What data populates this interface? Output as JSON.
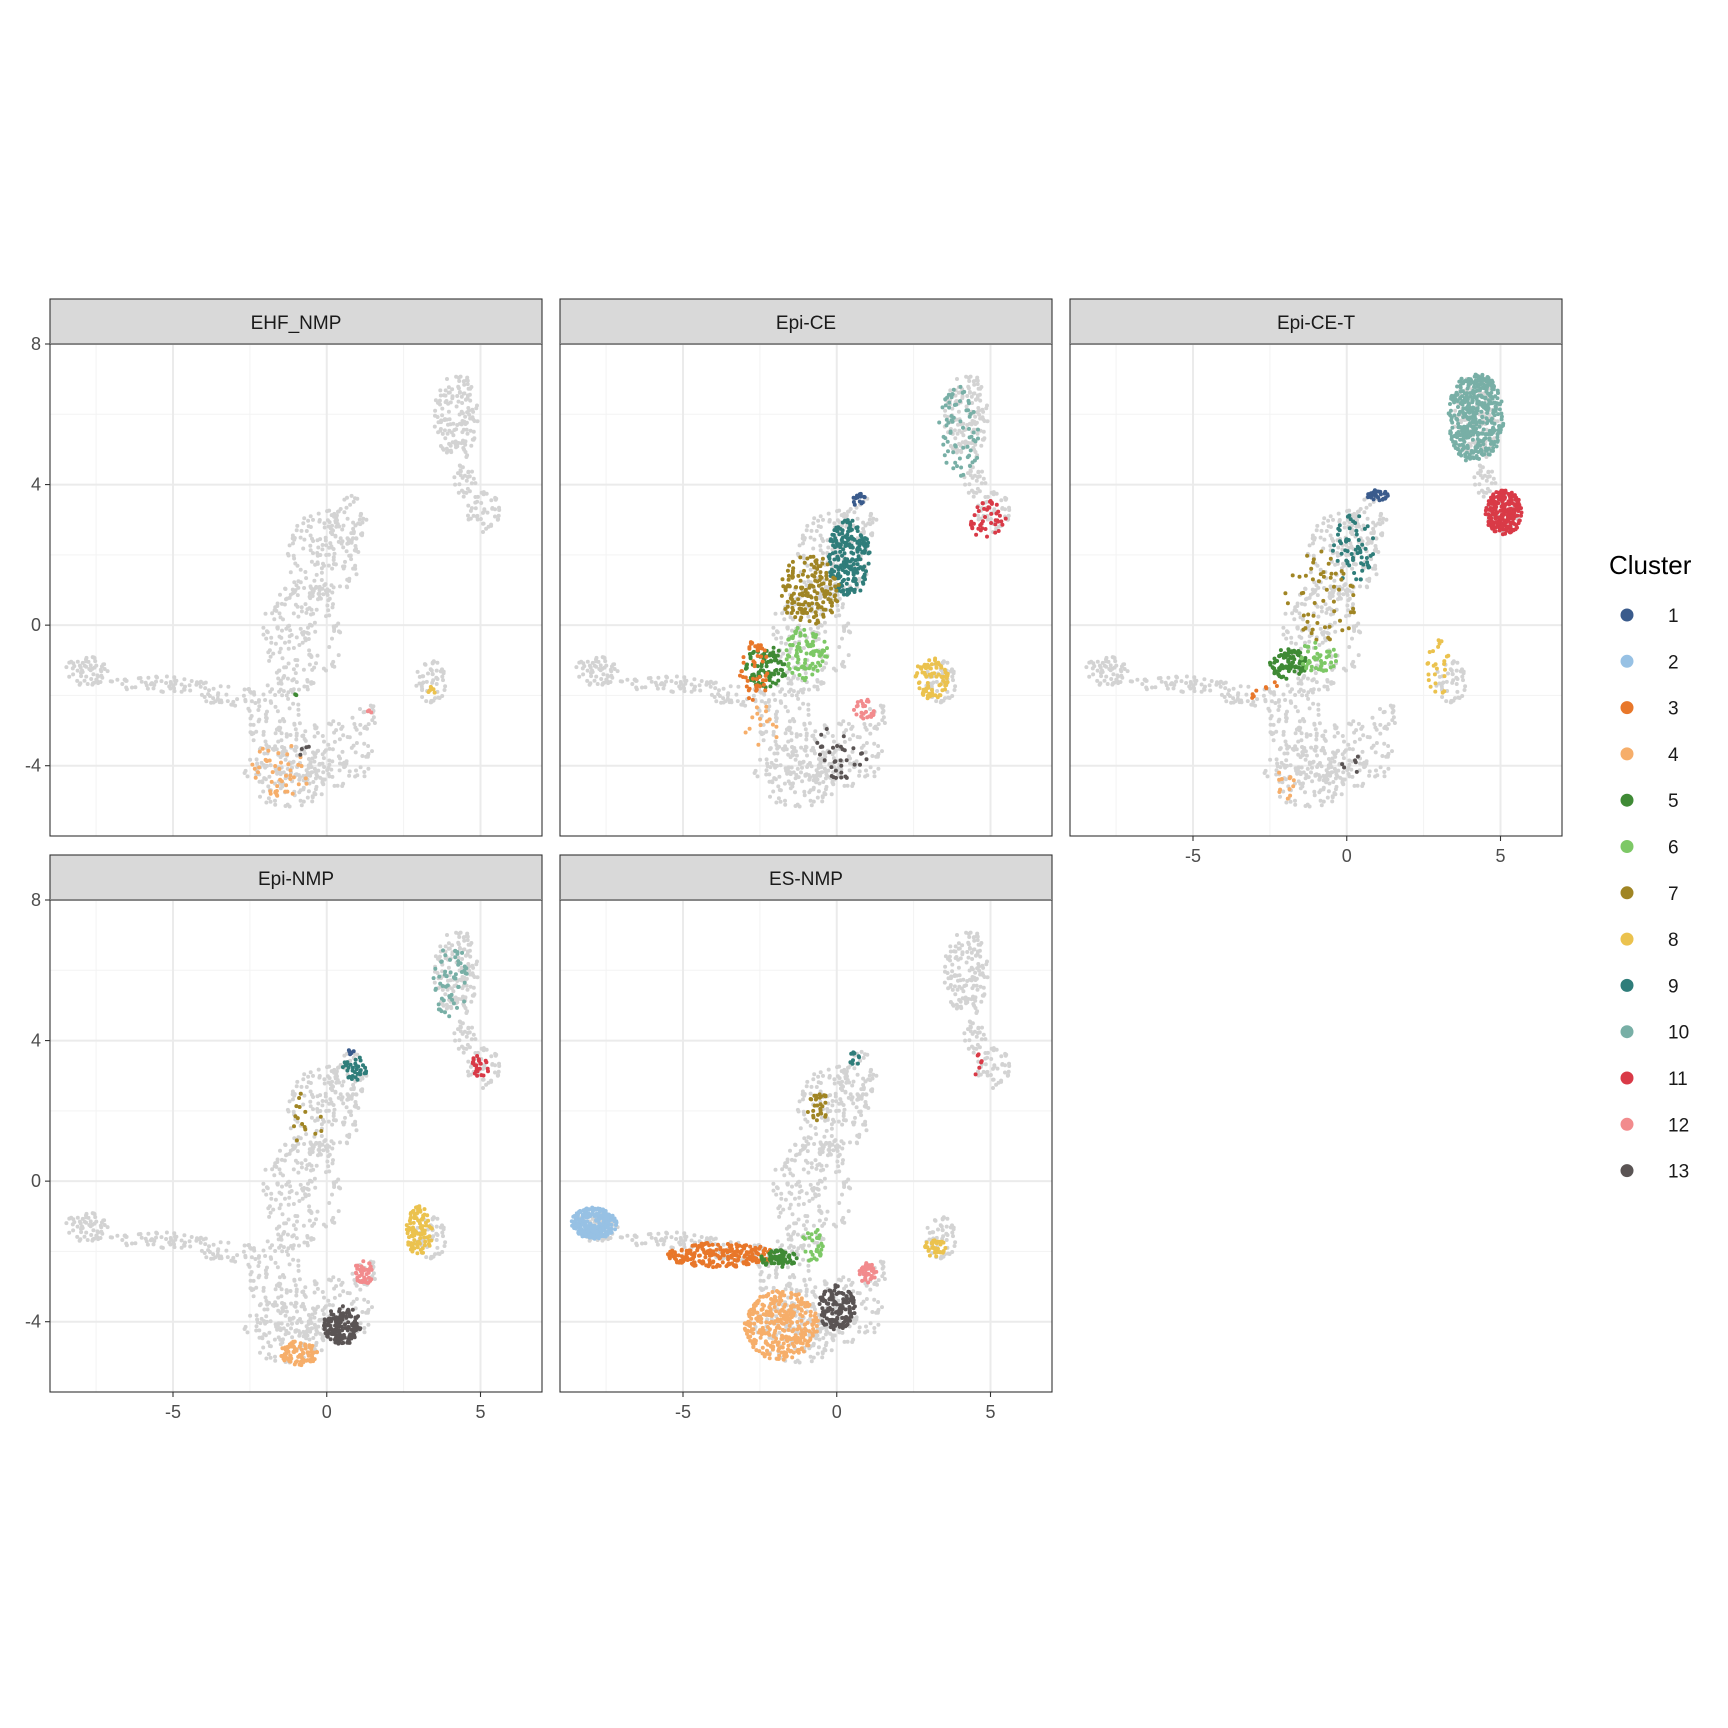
{
  "chart_data": {
    "type": "scatter",
    "facets": [
      "EHF_NMP",
      "Epi-CE",
      "Epi-CE-T",
      "Epi-NMP",
      "ES-NMP"
    ],
    "xlim": [
      -9,
      7
    ],
    "ylim": [
      -6,
      8
    ],
    "x_ticks": [
      -5,
      0,
      5
    ],
    "x_tick_labels": [
      "-5",
      "0",
      "5"
    ],
    "y_ticks": [
      -4,
      0,
      4,
      8
    ],
    "y_tick_labels": [
      "-4",
      "0",
      "4",
      "8"
    ],
    "grid": true,
    "legend": {
      "title": "Cluster",
      "position": "right",
      "entries": [
        {
          "label": "1",
          "color": "#3a5b8c"
        },
        {
          "label": "2",
          "color": "#97c1e4"
        },
        {
          "label": "3",
          "color": "#e8772a"
        },
        {
          "label": "4",
          "color": "#f6ae6a"
        },
        {
          "label": "5",
          "color": "#3f8a35"
        },
        {
          "label": "6",
          "color": "#7dc866"
        },
        {
          "label": "7",
          "color": "#a08524"
        },
        {
          "label": "8",
          "color": "#ebc24e"
        },
        {
          "label": "9",
          "color": "#2f7d7a"
        },
        {
          "label": "10",
          "color": "#78afa6"
        },
        {
          "label": "11",
          "color": "#d93a47"
        },
        {
          "label": "12",
          "color": "#f28b8d"
        },
        {
          "label": "13",
          "color": "#5a5454"
        }
      ]
    },
    "background_color": "#d3d3d3",
    "background_regions": [
      {
        "cx": -7.8,
        "cy": -1.3,
        "rx": 0.7,
        "ry": 0.45,
        "n": 60
      },
      {
        "cx": -5.5,
        "cy": -1.7,
        "rx": 1.7,
        "ry": 0.25,
        "n": 60
      },
      {
        "cx": -3.2,
        "cy": -2.0,
        "rx": 0.9,
        "ry": 0.3,
        "n": 35
      },
      {
        "cx": -1.7,
        "cy": -2.6,
        "rx": 0.9,
        "ry": 1.1,
        "n": 90
      },
      {
        "cx": -1.3,
        "cy": -4.3,
        "rx": 1.4,
        "ry": 0.9,
        "n": 140
      },
      {
        "cx": 0.2,
        "cy": -3.7,
        "rx": 1.3,
        "ry": 1.0,
        "n": 110
      },
      {
        "cx": -0.8,
        "cy": -0.3,
        "rx": 1.3,
        "ry": 1.6,
        "n": 170
      },
      {
        "cx": -0.1,
        "cy": 2.0,
        "rx": 1.2,
        "ry": 1.3,
        "n": 150
      },
      {
        "cx": 0.7,
        "cy": 3.0,
        "rx": 0.6,
        "ry": 0.7,
        "n": 50
      },
      {
        "cx": 3.4,
        "cy": -1.6,
        "rx": 0.5,
        "ry": 0.6,
        "n": 50
      },
      {
        "cx": 4.2,
        "cy": 6.0,
        "rx": 0.75,
        "ry": 1.2,
        "n": 140
      },
      {
        "cx": 4.5,
        "cy": 4.2,
        "rx": 0.35,
        "ry": 0.7,
        "n": 30
      },
      {
        "cx": 5.1,
        "cy": 3.2,
        "rx": 0.55,
        "ry": 0.6,
        "n": 45
      },
      {
        "cx": 1.2,
        "cy": -2.6,
        "rx": 0.4,
        "ry": 0.5,
        "n": 20
      }
    ],
    "panels": [
      {
        "name": "EHF_NMP",
        "highlights": [
          {
            "cluster": "4",
            "cx": -1.5,
            "cy": -4.1,
            "rx": 1.0,
            "ry": 0.8,
            "n": 45
          },
          {
            "cluster": "8",
            "cx": 3.4,
            "cy": -1.9,
            "rx": 0.15,
            "ry": 0.15,
            "n": 7
          },
          {
            "cluster": "12",
            "cx": 1.6,
            "cy": -2.5,
            "rx": 0.3,
            "ry": 0.2,
            "n": 3
          },
          {
            "cluster": "13",
            "cx": -0.8,
            "cy": -3.5,
            "rx": 0.3,
            "ry": 0.3,
            "n": 4
          },
          {
            "cluster": "5",
            "cx": -1.0,
            "cy": -2.0,
            "rx": 0.2,
            "ry": 0.2,
            "n": 2
          }
        ]
      },
      {
        "name": "Epi-CE",
        "highlights": [
          {
            "cluster": "9",
            "cx": 0.4,
            "cy": 1.9,
            "rx": 0.7,
            "ry": 1.1,
            "n": 220
          },
          {
            "cluster": "7",
            "cx": -0.9,
            "cy": 1.0,
            "rx": 1.0,
            "ry": 1.0,
            "n": 160
          },
          {
            "cluster": "6",
            "cx": -1.0,
            "cy": -0.8,
            "rx": 0.7,
            "ry": 0.8,
            "n": 90
          },
          {
            "cluster": "5",
            "cx": -2.3,
            "cy": -1.2,
            "rx": 0.7,
            "ry": 0.6,
            "n": 90
          },
          {
            "cluster": "3",
            "cx": -2.7,
            "cy": -1.3,
            "rx": 0.5,
            "ry": 0.9,
            "n": 50
          },
          {
            "cluster": "8",
            "cx": 3.1,
            "cy": -1.5,
            "rx": 0.55,
            "ry": 0.6,
            "n": 80
          },
          {
            "cluster": "10",
            "cx": 4.0,
            "cy": 5.5,
            "rx": 0.7,
            "ry": 1.3,
            "n": 70
          },
          {
            "cluster": "11",
            "cx": 4.9,
            "cy": 3.0,
            "rx": 0.6,
            "ry": 0.55,
            "n": 45
          },
          {
            "cluster": "1",
            "cx": 0.7,
            "cy": 3.6,
            "rx": 0.25,
            "ry": 0.2,
            "n": 15
          },
          {
            "cluster": "12",
            "cx": 0.9,
            "cy": -2.4,
            "rx": 0.35,
            "ry": 0.3,
            "n": 25
          },
          {
            "cluster": "13",
            "cx": 0.1,
            "cy": -3.6,
            "rx": 0.9,
            "ry": 0.8,
            "n": 35
          },
          {
            "cluster": "4",
            "cx": -2.4,
            "cy": -2.9,
            "rx": 0.6,
            "ry": 0.6,
            "n": 15
          }
        ]
      },
      {
        "name": "Epi-CE-T",
        "highlights": [
          {
            "cluster": "10",
            "cx": 4.2,
            "cy": 5.9,
            "rx": 0.9,
            "ry": 1.3,
            "n": 420
          },
          {
            "cluster": "11",
            "cx": 5.1,
            "cy": 3.2,
            "rx": 0.6,
            "ry": 0.65,
            "n": 240
          },
          {
            "cluster": "1",
            "cx": 1.0,
            "cy": 3.7,
            "rx": 0.35,
            "ry": 0.15,
            "n": 30
          },
          {
            "cluster": "9",
            "cx": 0.2,
            "cy": 2.2,
            "rx": 0.7,
            "ry": 1.0,
            "n": 60
          },
          {
            "cluster": "7",
            "cx": -0.8,
            "cy": 0.8,
            "rx": 1.2,
            "ry": 1.3,
            "n": 55
          },
          {
            "cluster": "5",
            "cx": -1.9,
            "cy": -1.1,
            "rx": 0.6,
            "ry": 0.45,
            "n": 90
          },
          {
            "cluster": "6",
            "cx": -0.9,
            "cy": -0.9,
            "rx": 0.6,
            "ry": 0.5,
            "n": 45
          },
          {
            "cluster": "8",
            "cx": 3.0,
            "cy": -1.2,
            "rx": 0.4,
            "ry": 0.8,
            "n": 25
          },
          {
            "cluster": "4",
            "cx": -2.0,
            "cy": -4.5,
            "rx": 0.3,
            "ry": 0.5,
            "n": 12
          },
          {
            "cluster": "3",
            "cx": -2.6,
            "cy": -2.0,
            "rx": 0.5,
            "ry": 0.5,
            "n": 8
          },
          {
            "cluster": "13",
            "cx": 0.2,
            "cy": -4.0,
            "rx": 0.4,
            "ry": 0.3,
            "n": 6
          }
        ]
      },
      {
        "name": "Epi-NMP",
        "highlights": [
          {
            "cluster": "13",
            "cx": 0.5,
            "cy": -4.1,
            "rx": 0.6,
            "ry": 0.55,
            "n": 150
          },
          {
            "cluster": "4",
            "cx": -0.9,
            "cy": -4.9,
            "rx": 0.6,
            "ry": 0.35,
            "n": 90
          },
          {
            "cluster": "8",
            "cx": 3.0,
            "cy": -1.4,
            "rx": 0.45,
            "ry": 0.7,
            "n": 110
          },
          {
            "cluster": "12",
            "cx": 1.2,
            "cy": -2.6,
            "rx": 0.3,
            "ry": 0.35,
            "n": 45
          },
          {
            "cluster": "10",
            "cx": 4.0,
            "cy": 5.7,
            "rx": 0.6,
            "ry": 1.1,
            "n": 55
          },
          {
            "cluster": "11",
            "cx": 5.0,
            "cy": 3.3,
            "rx": 0.3,
            "ry": 0.35,
            "n": 25
          },
          {
            "cluster": "9",
            "cx": 0.9,
            "cy": 3.2,
            "rx": 0.4,
            "ry": 0.35,
            "n": 35
          },
          {
            "cluster": "1",
            "cx": 0.8,
            "cy": 3.7,
            "rx": 0.15,
            "ry": 0.1,
            "n": 6
          },
          {
            "cluster": "7",
            "cx": -0.6,
            "cy": 1.7,
            "rx": 0.5,
            "ry": 0.9,
            "n": 15
          }
        ]
      },
      {
        "name": "ES-NMP",
        "highlights": [
          {
            "cluster": "2",
            "cx": -7.9,
            "cy": -1.2,
            "rx": 0.75,
            "ry": 0.45,
            "n": 260
          },
          {
            "cluster": "3",
            "cx": -3.8,
            "cy": -2.1,
            "rx": 1.8,
            "ry": 0.35,
            "n": 230
          },
          {
            "cluster": "4",
            "cx": -1.8,
            "cy": -4.1,
            "rx": 1.2,
            "ry": 1.0,
            "n": 330
          },
          {
            "cluster": "13",
            "cx": 0.0,
            "cy": -3.6,
            "rx": 0.6,
            "ry": 0.65,
            "n": 140
          },
          {
            "cluster": "5",
            "cx": -1.9,
            "cy": -2.2,
            "rx": 0.6,
            "ry": 0.25,
            "n": 70
          },
          {
            "cluster": "6",
            "cx": -0.8,
            "cy": -1.8,
            "rx": 0.4,
            "ry": 0.5,
            "n": 30
          },
          {
            "cluster": "7",
            "cx": -0.6,
            "cy": 2.2,
            "rx": 0.4,
            "ry": 0.5,
            "n": 30
          },
          {
            "cluster": "12",
            "cx": 1.0,
            "cy": -2.6,
            "rx": 0.3,
            "ry": 0.3,
            "n": 40
          },
          {
            "cluster": "8",
            "cx": 3.2,
            "cy": -1.9,
            "rx": 0.35,
            "ry": 0.25,
            "n": 40
          },
          {
            "cluster": "9",
            "cx": 0.6,
            "cy": 3.5,
            "rx": 0.2,
            "ry": 0.2,
            "n": 10
          },
          {
            "cluster": "11",
            "cx": 4.6,
            "cy": 3.3,
            "rx": 0.15,
            "ry": 0.4,
            "n": 6
          }
        ]
      }
    ]
  }
}
